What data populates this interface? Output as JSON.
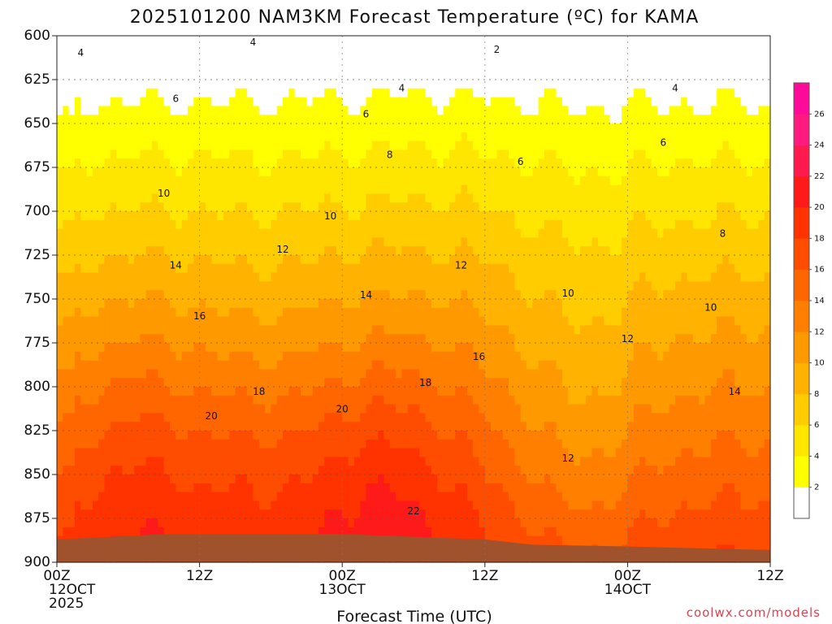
{
  "chart_data": {
    "type": "heatmap",
    "title": "2025101200 NAM3KM Forecast Temperature (ºC) for KAMA",
    "xlabel": "Forecast Time (UTC)",
    "ylabel": "",
    "credit": "coolwx.com/models",
    "x_range_hours": [
      0,
      60
    ],
    "y_range_hpa": [
      600,
      900
    ],
    "y_ticks": [
      {
        "value": 600,
        "label": "600"
      },
      {
        "value": 625,
        "label": "625"
      },
      {
        "value": 650,
        "label": "650"
      },
      {
        "value": 675,
        "label": "675"
      },
      {
        "value": 700,
        "label": "700"
      },
      {
        "value": 725,
        "label": "725"
      },
      {
        "value": 750,
        "label": "750"
      },
      {
        "value": 775,
        "label": "775"
      },
      {
        "value": 800,
        "label": "800"
      },
      {
        "value": 825,
        "label": "825"
      },
      {
        "value": 850,
        "label": "850"
      },
      {
        "value": 875,
        "label": "875"
      },
      {
        "value": 900,
        "label": "900"
      }
    ],
    "x_ticks": [
      {
        "hour": 0,
        "lines": [
          "00Z",
          "12OCT",
          "2025"
        ]
      },
      {
        "hour": 12,
        "lines": [
          "12Z"
        ]
      },
      {
        "hour": 24,
        "lines": [
          "00Z",
          "13OCT"
        ]
      },
      {
        "hour": 36,
        "lines": [
          "12Z"
        ]
      },
      {
        "hour": 48,
        "lines": [
          "00Z",
          "14OCT"
        ]
      },
      {
        "hour": 60,
        "lines": [
          "12Z"
        ]
      }
    ],
    "colorbar": {
      "levels": [
        2,
        4,
        6,
        8,
        10,
        12,
        14,
        16,
        18,
        20,
        22,
        24,
        26
      ],
      "colors": [
        "#ffffff",
        "#ffff00",
        "#ffe600",
        "#ffcc00",
        "#ffb300",
        "#ff9900",
        "#ff8000",
        "#ff6600",
        "#ff4d00",
        "#ff3300",
        "#ff1a1a",
        "#ff1a4d",
        "#ff1a80",
        "#ff0a99"
      ]
    },
    "ground_color": "#a0522d",
    "ground_surface_hpa": [
      {
        "hour": 0,
        "p": 887
      },
      {
        "hour": 9,
        "p": 884
      },
      {
        "hour": 24,
        "p": 884
      },
      {
        "hour": 36,
        "p": 887
      },
      {
        "hour": 40,
        "p": 890
      },
      {
        "hour": 48,
        "p": 891
      },
      {
        "hour": 60,
        "p": 893
      }
    ],
    "contour_labels": [
      {
        "text": "4",
        "hour": 2,
        "p": 610
      },
      {
        "text": "4",
        "hour": 16.5,
        "p": 604
      },
      {
        "text": "4",
        "hour": 29,
        "p": 630
      },
      {
        "text": "4",
        "hour": 52,
        "p": 630
      },
      {
        "text": "2",
        "hour": 37,
        "p": 608
      },
      {
        "text": "6",
        "hour": 10,
        "p": 636
      },
      {
        "text": "6",
        "hour": 26,
        "p": 645
      },
      {
        "text": "6",
        "hour": 51,
        "p": 661
      },
      {
        "text": "6",
        "hour": 39,
        "p": 672
      },
      {
        "text": "8",
        "hour": 28,
        "p": 668
      },
      {
        "text": "8",
        "hour": 56,
        "p": 713
      },
      {
        "text": "10",
        "hour": 9,
        "p": 690
      },
      {
        "text": "10",
        "hour": 23,
        "p": 703
      },
      {
        "text": "10",
        "hour": 43,
        "p": 747
      },
      {
        "text": "10",
        "hour": 55,
        "p": 755
      },
      {
        "text": "12",
        "hour": 19,
        "p": 722
      },
      {
        "text": "12",
        "hour": 34,
        "p": 731
      },
      {
        "text": "12",
        "hour": 48,
        "p": 773
      },
      {
        "text": "12",
        "hour": 43,
        "p": 841
      },
      {
        "text": "14",
        "hour": 10,
        "p": 731
      },
      {
        "text": "14",
        "hour": 26,
        "p": 748
      },
      {
        "text": "14",
        "hour": 57,
        "p": 803
      },
      {
        "text": "16",
        "hour": 12,
        "p": 760
      },
      {
        "text": "16",
        "hour": 35.5,
        "p": 783
      },
      {
        "text": "18",
        "hour": 17,
        "p": 803
      },
      {
        "text": "18",
        "hour": 31,
        "p": 798
      },
      {
        "text": "20",
        "hour": 13,
        "p": 817
      },
      {
        "text": "20",
        "hour": 24,
        "p": 813
      },
      {
        "text": "22",
        "hour": 30,
        "p": 871
      }
    ]
  }
}
